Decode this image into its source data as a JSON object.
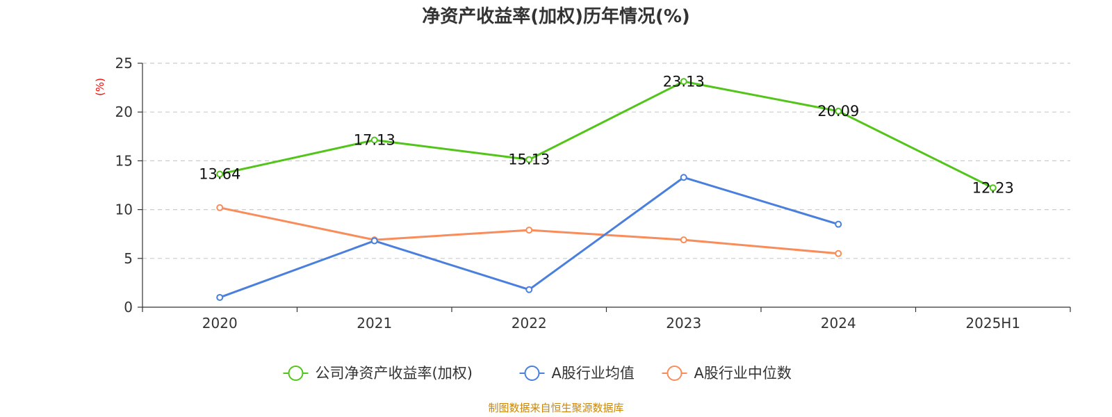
{
  "chart_data": {
    "type": "line",
    "title": "净资产收益率(加权)历年情况(%)",
    "ylabel": "(%)",
    "xlabel": "",
    "categories": [
      "2020",
      "2021",
      "2022",
      "2023",
      "2024",
      "2025H1"
    ],
    "ylim": [
      0,
      25
    ],
    "yticks": [
      0,
      5,
      10,
      15,
      20,
      25
    ],
    "grid": true,
    "legend_position": "bottom",
    "series": [
      {
        "name": "公司净资产收益率(加权)",
        "color": "#52c41a",
        "values": [
          13.64,
          17.13,
          15.13,
          23.13,
          20.09,
          12.23
        ],
        "show_labels": true
      },
      {
        "name": "A股行业均值",
        "color": "#4a7fde",
        "values": [
          1.0,
          6.8,
          1.8,
          13.3,
          8.5,
          null
        ],
        "show_labels": false
      },
      {
        "name": "A股行业中位数",
        "color": "#f88c5a",
        "values": [
          10.2,
          6.9,
          7.9,
          6.9,
          5.5,
          null
        ],
        "show_labels": false
      }
    ]
  },
  "source": "制图数据来自恒生聚源数据库"
}
